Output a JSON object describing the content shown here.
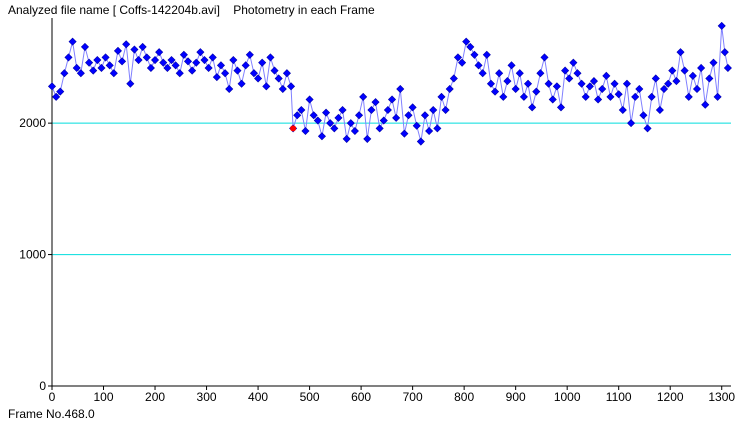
{
  "header": {
    "title": "Analyzed file name [ Coffs-142204b.avi]    Photometry in each Frame"
  },
  "footer": {
    "frame_readout": "Frame No.468.0"
  },
  "chart_data": {
    "type": "line",
    "title": "",
    "xlabel": "",
    "ylabel": "",
    "xlim": [
      0,
      1318
    ],
    "ylim": [
      0,
      2800
    ],
    "x_ticks": [
      0,
      100,
      200,
      300,
      400,
      500,
      600,
      700,
      800,
      900,
      1000,
      1100,
      1200,
      1300
    ],
    "y_ticks": [
      0,
      1000,
      2000
    ],
    "grid_lines_y": [
      1000,
      2000
    ],
    "grid": false,
    "legend": "none",
    "colors": {
      "series_line": "#8080ff",
      "marker": "#0000ff",
      "marker_edge": "#0000aa",
      "grid_line": "#00dddd",
      "highlight": "#ff0000",
      "axis": "#000000"
    },
    "highlight_point": {
      "x": 468,
      "y": 1960
    },
    "series": [
      {
        "name": "",
        "points": [
          [
            0,
            2280
          ],
          [
            8,
            2200
          ],
          [
            16,
            2240
          ],
          [
            24,
            2380
          ],
          [
            32,
            2500
          ],
          [
            40,
            2620
          ],
          [
            48,
            2420
          ],
          [
            56,
            2380
          ],
          [
            64,
            2580
          ],
          [
            72,
            2460
          ],
          [
            80,
            2400
          ],
          [
            88,
            2480
          ],
          [
            96,
            2420
          ],
          [
            104,
            2500
          ],
          [
            112,
            2440
          ],
          [
            120,
            2380
          ],
          [
            128,
            2550
          ],
          [
            136,
            2470
          ],
          [
            144,
            2600
          ],
          [
            152,
            2300
          ],
          [
            160,
            2560
          ],
          [
            168,
            2480
          ],
          [
            176,
            2580
          ],
          [
            184,
            2500
          ],
          [
            192,
            2420
          ],
          [
            200,
            2480
          ],
          [
            208,
            2540
          ],
          [
            216,
            2460
          ],
          [
            224,
            2420
          ],
          [
            232,
            2480
          ],
          [
            240,
            2440
          ],
          [
            248,
            2380
          ],
          [
            256,
            2520
          ],
          [
            264,
            2470
          ],
          [
            272,
            2400
          ],
          [
            280,
            2460
          ],
          [
            288,
            2540
          ],
          [
            296,
            2480
          ],
          [
            304,
            2420
          ],
          [
            312,
            2500
          ],
          [
            320,
            2350
          ],
          [
            328,
            2440
          ],
          [
            336,
            2380
          ],
          [
            344,
            2260
          ],
          [
            352,
            2480
          ],
          [
            360,
            2400
          ],
          [
            368,
            2300
          ],
          [
            376,
            2440
          ],
          [
            384,
            2520
          ],
          [
            392,
            2380
          ],
          [
            400,
            2340
          ],
          [
            408,
            2460
          ],
          [
            416,
            2280
          ],
          [
            424,
            2500
          ],
          [
            432,
            2400
          ],
          [
            440,
            2340
          ],
          [
            448,
            2260
          ],
          [
            456,
            2380
          ],
          [
            464,
            2280
          ],
          [
            468,
            1960
          ],
          [
            476,
            2060
          ],
          [
            484,
            2100
          ],
          [
            492,
            1940
          ],
          [
            500,
            2180
          ],
          [
            508,
            2060
          ],
          [
            516,
            2020
          ],
          [
            524,
            1900
          ],
          [
            532,
            2080
          ],
          [
            540,
            2000
          ],
          [
            548,
            1960
          ],
          [
            556,
            2040
          ],
          [
            564,
            2100
          ],
          [
            572,
            1880
          ],
          [
            580,
            2000
          ],
          [
            588,
            1940
          ],
          [
            596,
            2060
          ],
          [
            604,
            2200
          ],
          [
            612,
            1880
          ],
          [
            620,
            2100
          ],
          [
            628,
            2160
          ],
          [
            636,
            1960
          ],
          [
            644,
            2020
          ],
          [
            652,
            2100
          ],
          [
            660,
            2180
          ],
          [
            668,
            2040
          ],
          [
            676,
            2260
          ],
          [
            684,
            1920
          ],
          [
            692,
            2060
          ],
          [
            700,
            2120
          ],
          [
            708,
            1980
          ],
          [
            716,
            1860
          ],
          [
            724,
            2060
          ],
          [
            732,
            1940
          ],
          [
            740,
            2100
          ],
          [
            748,
            1960
          ],
          [
            756,
            2200
          ],
          [
            764,
            2100
          ],
          [
            772,
            2260
          ],
          [
            780,
            2340
          ],
          [
            788,
            2500
          ],
          [
            796,
            2460
          ],
          [
            804,
            2620
          ],
          [
            812,
            2580
          ],
          [
            820,
            2520
          ],
          [
            828,
            2440
          ],
          [
            836,
            2380
          ],
          [
            844,
            2520
          ],
          [
            852,
            2300
          ],
          [
            860,
            2240
          ],
          [
            868,
            2380
          ],
          [
            876,
            2200
          ],
          [
            884,
            2320
          ],
          [
            892,
            2440
          ],
          [
            900,
            2260
          ],
          [
            908,
            2380
          ],
          [
            916,
            2200
          ],
          [
            924,
            2300
          ],
          [
            932,
            2120
          ],
          [
            940,
            2240
          ],
          [
            948,
            2380
          ],
          [
            956,
            2500
          ],
          [
            964,
            2300
          ],
          [
            972,
            2180
          ],
          [
            980,
            2280
          ],
          [
            988,
            2120
          ],
          [
            996,
            2400
          ],
          [
            1004,
            2340
          ],
          [
            1012,
            2460
          ],
          [
            1020,
            2380
          ],
          [
            1028,
            2300
          ],
          [
            1036,
            2200
          ],
          [
            1044,
            2280
          ],
          [
            1052,
            2320
          ],
          [
            1060,
            2180
          ],
          [
            1068,
            2260
          ],
          [
            1076,
            2360
          ],
          [
            1084,
            2200
          ],
          [
            1092,
            2300
          ],
          [
            1100,
            2220
          ],
          [
            1108,
            2100
          ],
          [
            1116,
            2300
          ],
          [
            1124,
            2000
          ],
          [
            1132,
            2200
          ],
          [
            1140,
            2260
          ],
          [
            1148,
            2060
          ],
          [
            1156,
            1960
          ],
          [
            1164,
            2200
          ],
          [
            1172,
            2340
          ],
          [
            1180,
            2100
          ],
          [
            1188,
            2260
          ],
          [
            1196,
            2300
          ],
          [
            1204,
            2400
          ],
          [
            1212,
            2320
          ],
          [
            1220,
            2540
          ],
          [
            1228,
            2400
          ],
          [
            1236,
            2200
          ],
          [
            1244,
            2360
          ],
          [
            1252,
            2260
          ],
          [
            1260,
            2420
          ],
          [
            1268,
            2140
          ],
          [
            1276,
            2340
          ],
          [
            1284,
            2460
          ],
          [
            1292,
            2200
          ],
          [
            1300,
            2740
          ],
          [
            1306,
            2540
          ],
          [
            1312,
            2420
          ]
        ]
      }
    ]
  }
}
